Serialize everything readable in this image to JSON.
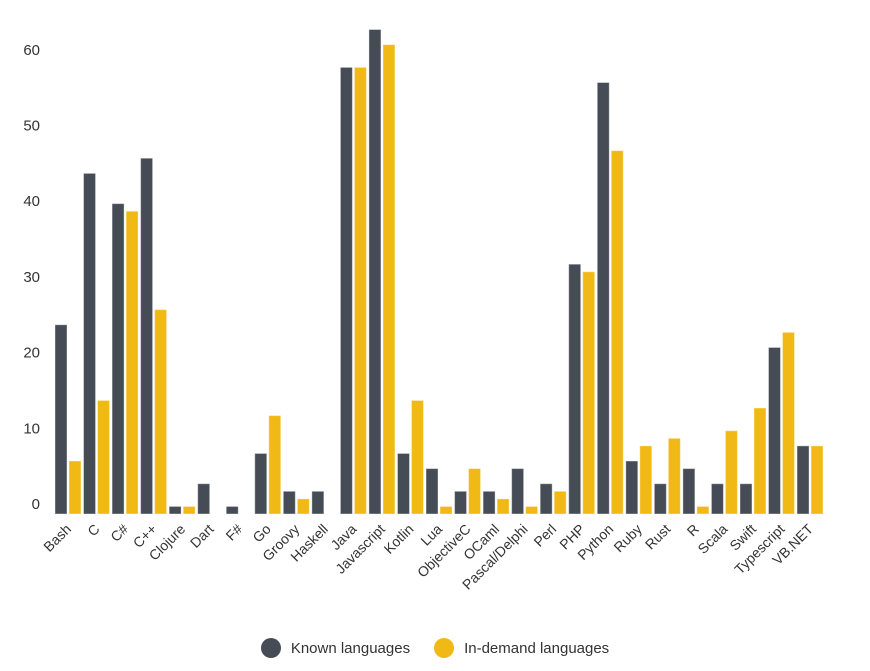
{
  "chart_data": {
    "type": "bar",
    "title": "",
    "xlabel": "",
    "ylabel": "",
    "ylim": [
      0,
      65
    ],
    "yticks": [
      0,
      10,
      20,
      30,
      40,
      50,
      60
    ],
    "grid": false,
    "legend_position": "bottom-center",
    "categories": [
      "Bash",
      "C",
      "C#",
      "C++",
      "Clojure",
      "Dart",
      "F#",
      "Go",
      "Groovy",
      "Haskell",
      "Java",
      "Javascript",
      "Kotlin",
      "Lua",
      "ObjectiveC",
      "OCaml",
      "Pascal/Delphi",
      "Perl",
      "PHP",
      "Python",
      "Ruby",
      "Rust",
      "R",
      "Scala",
      "Swift",
      "Typescript",
      "VB.NET"
    ],
    "series": [
      {
        "name": "Known languages",
        "color": "#464c55",
        "values": [
          25,
          45,
          41,
          47,
          1,
          4,
          1,
          8,
          3,
          3,
          59,
          64,
          8,
          6,
          3,
          3,
          6,
          4,
          33,
          57,
          7,
          4,
          6,
          4,
          4,
          22,
          9
        ]
      },
      {
        "name": "In-demand languages",
        "color": "#f0b916",
        "values": [
          7,
          15,
          40,
          27,
          1,
          0,
          0,
          13,
          2,
          0,
          59,
          62,
          15,
          1,
          6,
          2,
          1,
          3,
          32,
          48,
          9,
          10,
          1,
          11,
          14,
          24,
          9
        ]
      }
    ]
  }
}
